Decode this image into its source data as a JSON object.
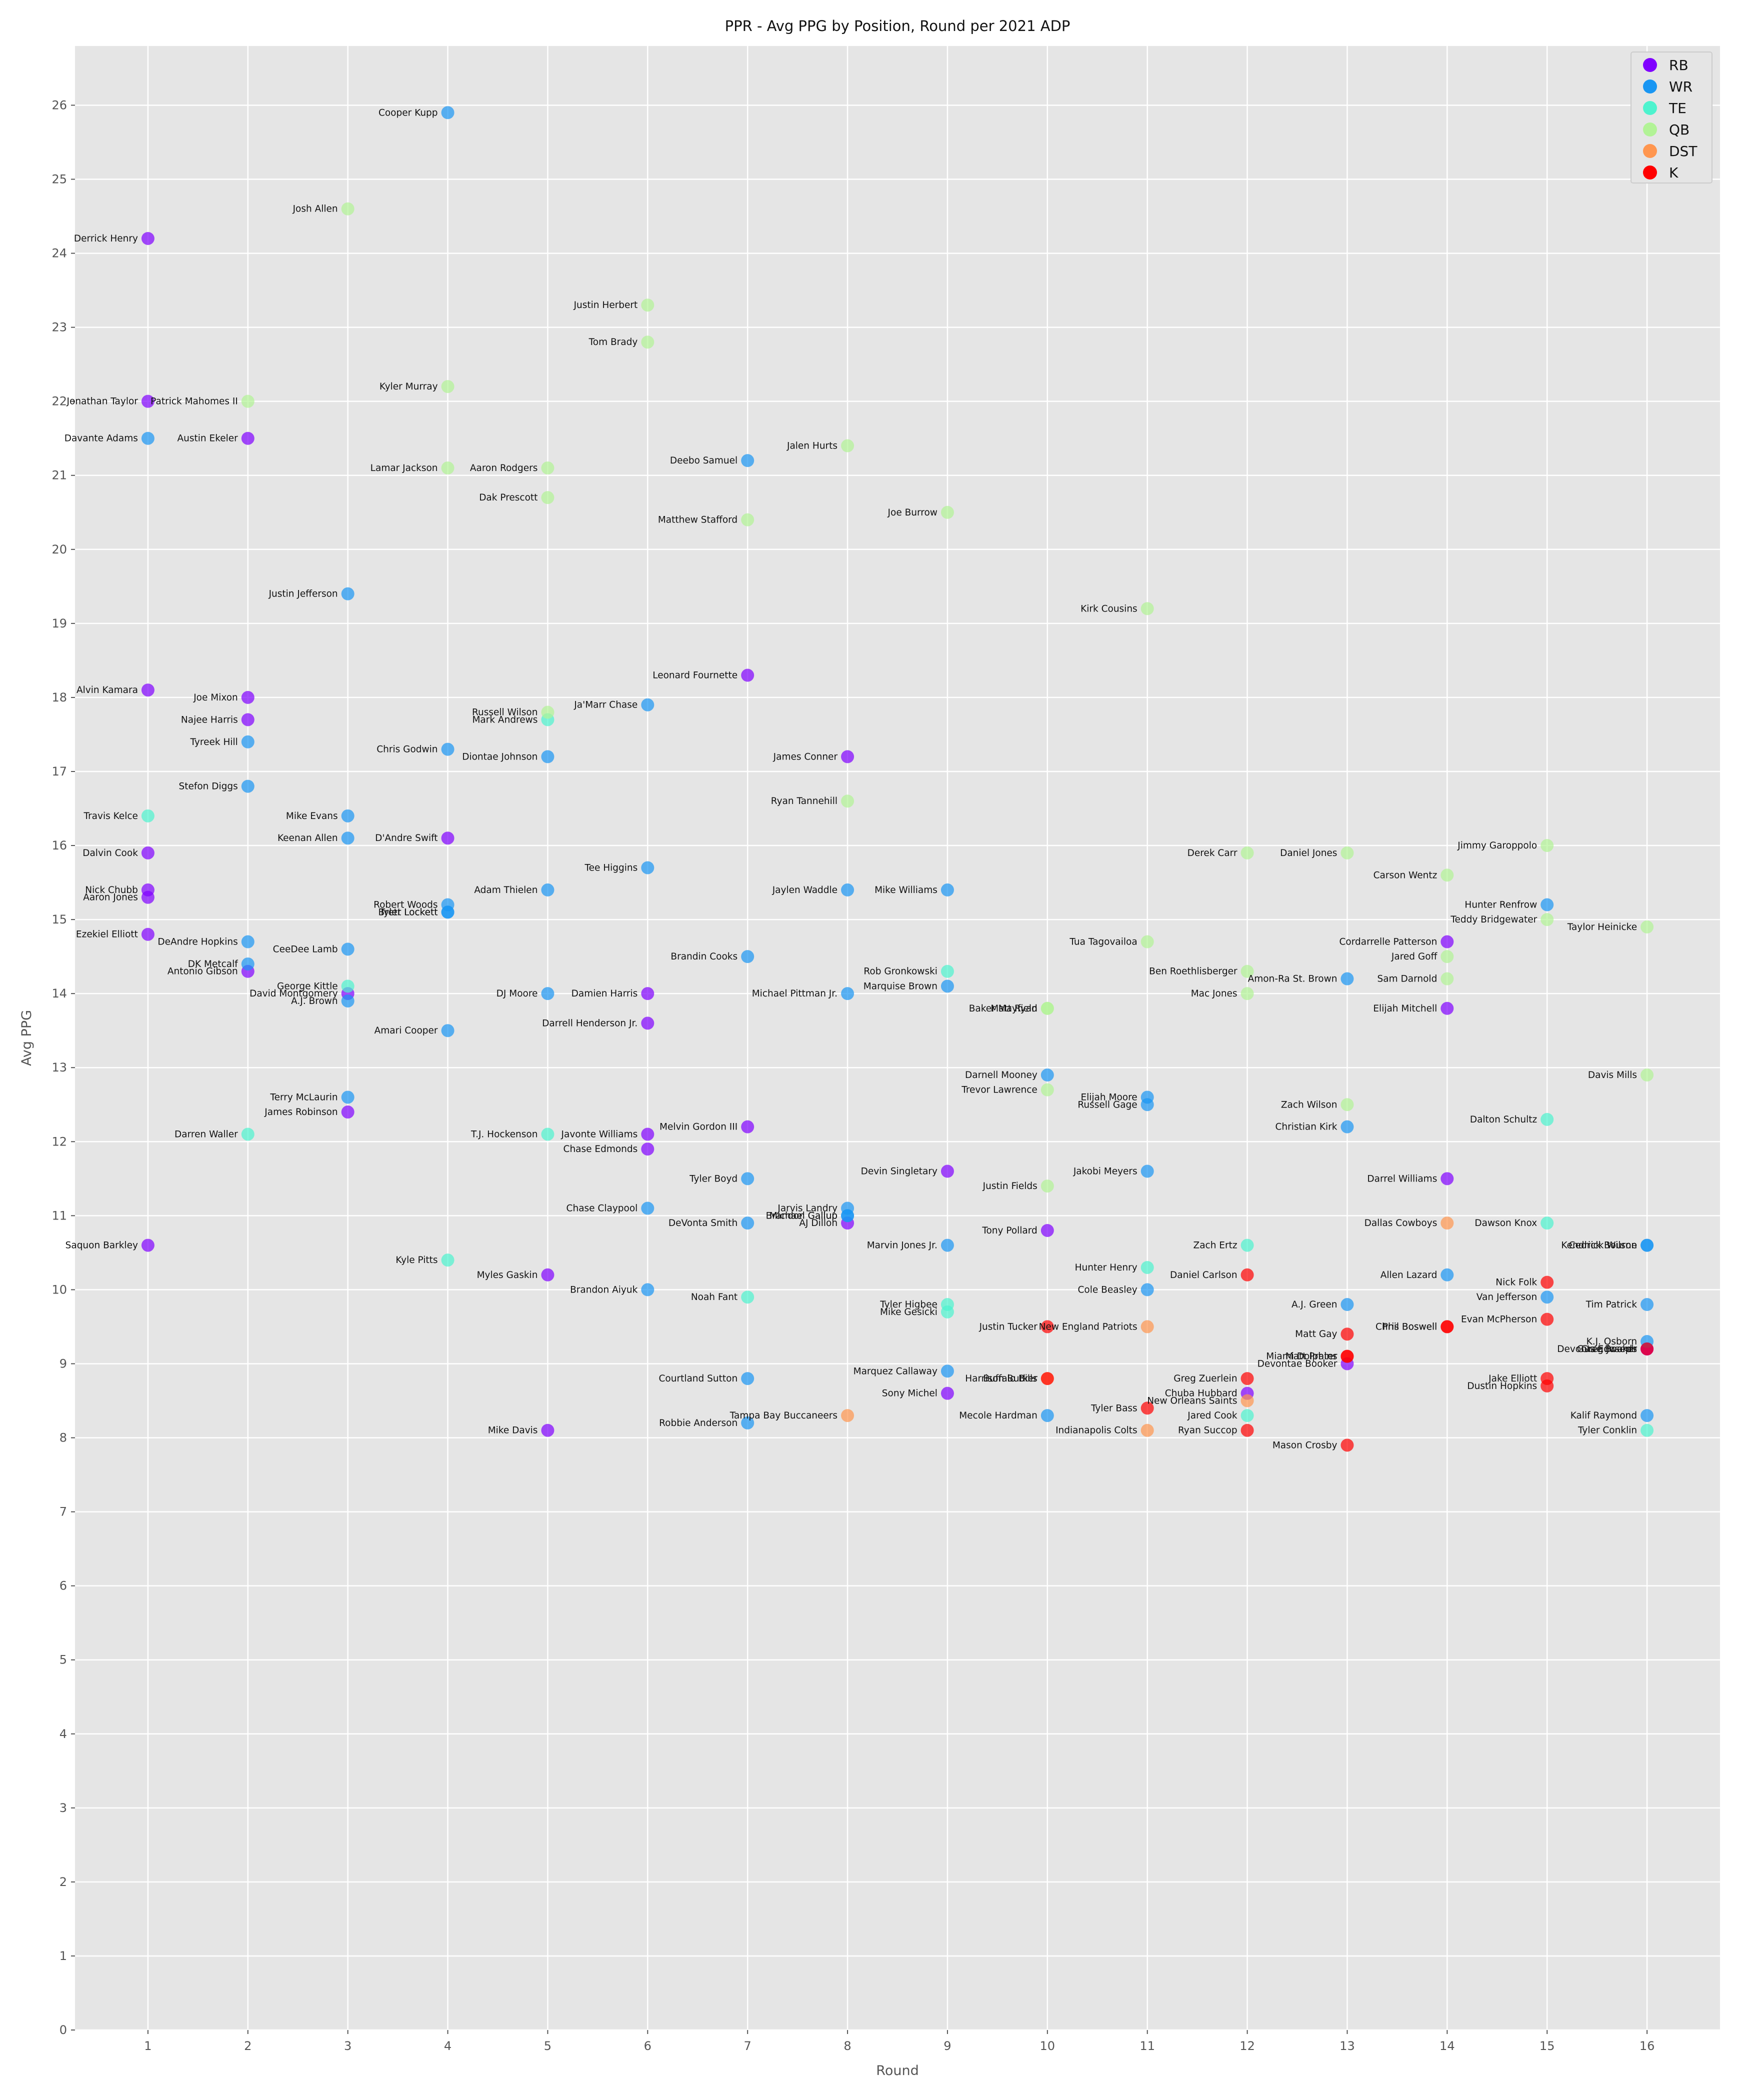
{
  "chart_data": {
    "type": "scatter",
    "title": "PPR - Avg PPG by Position, Round per 2021 ADP",
    "xlabel": "Round",
    "ylabel": "Avg PPG",
    "xlim": [
      0.27,
      16.73
    ],
    "ylim": [
      0,
      26.8
    ],
    "x_ticks": [
      1,
      2,
      3,
      4,
      5,
      6,
      7,
      8,
      9,
      10,
      11,
      12,
      13,
      14,
      15,
      16
    ],
    "y_ticks": [
      0,
      1,
      2,
      3,
      4,
      5,
      6,
      7,
      8,
      9,
      10,
      11,
      12,
      13,
      14,
      15,
      16,
      17,
      18,
      19,
      20,
      21,
      22,
      23,
      24,
      25,
      26
    ],
    "grid": true,
    "legend_position": "top-right",
    "background": "#e5e5e5",
    "series": [
      {
        "name": "RB",
        "color": "#8000ff",
        "points": [
          {
            "x": 1,
            "y": 24.2,
            "label": "Derrick Henry"
          },
          {
            "x": 1,
            "y": 22.0,
            "label": "Jonathan Taylor"
          },
          {
            "x": 2,
            "y": 21.5,
            "label": "Austin Ekeler"
          },
          {
            "x": 1,
            "y": 18.1,
            "label": "Alvin Kamara"
          },
          {
            "x": 2,
            "y": 18.0,
            "label": "Joe Mixon"
          },
          {
            "x": 2,
            "y": 17.7,
            "label": "Najee Harris"
          },
          {
            "x": 1,
            "y": 15.9,
            "label": "Dalvin Cook"
          },
          {
            "x": 1,
            "y": 15.4,
            "label": "Nick Chubb"
          },
          {
            "x": 1,
            "y": 15.3,
            "label": "Aaron Jones"
          },
          {
            "x": 1,
            "y": 14.8,
            "label": "Ezekiel Elliott"
          },
          {
            "x": 2,
            "y": 14.3,
            "label": "Antonio Gibson"
          },
          {
            "x": 3,
            "y": 14.0,
            "label": "David Montgomery"
          },
          {
            "x": 3,
            "y": 12.4,
            "label": "James Robinson"
          },
          {
            "x": 1,
            "y": 10.6,
            "label": "Saquon Barkley"
          },
          {
            "x": 4,
            "y": 16.1,
            "label": "D'Andre Swift"
          },
          {
            "x": 5,
            "y": 10.2,
            "label": "Myles Gaskin"
          },
          {
            "x": 5,
            "y": 8.1,
            "label": "Mike Davis"
          },
          {
            "x": 6,
            "y": 14.0,
            "label": "Damien Harris"
          },
          {
            "x": 6,
            "y": 13.6,
            "label": "Darrell Henderson Jr."
          },
          {
            "x": 6,
            "y": 12.1,
            "label": "Javonte Williams"
          },
          {
            "x": 6,
            "y": 11.9,
            "label": "Chase Edmonds"
          },
          {
            "x": 7,
            "y": 18.3,
            "label": "Leonard Fournette"
          },
          {
            "x": 7,
            "y": 12.2,
            "label": "Melvin Gordon III"
          },
          {
            "x": 8,
            "y": 17.2,
            "label": "James Conner"
          },
          {
            "x": 8,
            "y": 10.9,
            "label": "AJ Dillon"
          },
          {
            "x": 9,
            "y": 11.6,
            "label": "Devin Singletary"
          },
          {
            "x": 9,
            "y": 8.6,
            "label": "Sony Michel"
          },
          {
            "x": 10,
            "y": 10.8,
            "label": "Tony Pollard"
          },
          {
            "x": 12,
            "y": 8.6,
            "label": "Chuba Hubbard"
          },
          {
            "x": 13,
            "y": 9.0,
            "label": "Devontae Booker"
          },
          {
            "x": 14,
            "y": 14.7,
            "label": "Cordarrelle Patterson"
          },
          {
            "x": 14,
            "y": 13.8,
            "label": "Elijah Mitchell"
          },
          {
            "x": 14,
            "y": 11.5,
            "label": "Darrel Williams"
          },
          {
            "x": 16,
            "y": 9.2,
            "label": "Devontae Booker"
          },
          {
            "x": 16,
            "y": 9.2,
            "label": "Gus Edwards"
          }
        ]
      },
      {
        "name": "WR",
        "color": "#1996f3",
        "points": [
          {
            "x": 4,
            "y": 25.9,
            "label": "Cooper Kupp"
          },
          {
            "x": 1,
            "y": 21.5,
            "label": "Davante Adams"
          },
          {
            "x": 7,
            "y": 21.2,
            "label": "Deebo Samuel"
          },
          {
            "x": 3,
            "y": 19.4,
            "label": "Justin Jefferson"
          },
          {
            "x": 6,
            "y": 17.9,
            "label": "Ja'Marr Chase"
          },
          {
            "x": 2,
            "y": 17.4,
            "label": "Tyreek Hill"
          },
          {
            "x": 4,
            "y": 17.3,
            "label": "Chris Godwin"
          },
          {
            "x": 5,
            "y": 17.2,
            "label": "Diontae Johnson"
          },
          {
            "x": 2,
            "y": 16.8,
            "label": "Stefon Diggs"
          },
          {
            "x": 3,
            "y": 16.4,
            "label": "Mike Evans"
          },
          {
            "x": 3,
            "y": 16.1,
            "label": "Keenan Allen"
          },
          {
            "x": 6,
            "y": 15.7,
            "label": "Tee Higgins"
          },
          {
            "x": 5,
            "y": 15.4,
            "label": "Adam Thielen"
          },
          {
            "x": 8,
            "y": 15.4,
            "label": "Jaylen Waddle"
          },
          {
            "x": 9,
            "y": 15.4,
            "label": "Mike Williams"
          },
          {
            "x": 4,
            "y": 15.2,
            "label": "Robert Woods"
          },
          {
            "x": 4,
            "y": 15.1,
            "label": "Tyler Lockett"
          },
          {
            "x": 4,
            "y": 15.1,
            "label": "Brett Lockett"
          },
          {
            "x": 2,
            "y": 14.7,
            "label": "DeAndre Hopkins"
          },
          {
            "x": 3,
            "y": 14.6,
            "label": "CeeDee Lamb"
          },
          {
            "x": 7,
            "y": 14.5,
            "label": "Brandin Cooks"
          },
          {
            "x": 2,
            "y": 14.4,
            "label": "DK Metcalf"
          },
          {
            "x": 9,
            "y": 14.1,
            "label": "Marquise Brown"
          },
          {
            "x": 5,
            "y": 14.0,
            "label": "DJ Moore"
          },
          {
            "x": 8,
            "y": 14.0,
            "label": "Michael Pittman Jr."
          },
          {
            "x": 3,
            "y": 13.9,
            "label": "A.J. Brown"
          },
          {
            "x": 4,
            "y": 13.5,
            "label": "Amari Cooper"
          },
          {
            "x": 10,
            "y": 12.9,
            "label": "Darnell Mooney"
          },
          {
            "x": 3,
            "y": 12.6,
            "label": "Terry McLaurin"
          },
          {
            "x": 11,
            "y": 12.6,
            "label": "Elijah Moore"
          },
          {
            "x": 11,
            "y": 12.5,
            "label": "Russell Gage"
          },
          {
            "x": 13,
            "y": 12.2,
            "label": "Christian Kirk"
          },
          {
            "x": 7,
            "y": 11.5,
            "label": "Tyler Boyd"
          },
          {
            "x": 11,
            "y": 11.6,
            "label": "Jakobi Meyers"
          },
          {
            "x": 6,
            "y": 11.1,
            "label": "Chase Claypool"
          },
          {
            "x": 8,
            "y": 11.1,
            "label": "Jarvis Landry"
          },
          {
            "x": 8,
            "y": 11.0,
            "label": "Michael Gallup"
          },
          {
            "x": 8,
            "y": 11.0,
            "label": "Brandon Gallup"
          },
          {
            "x": 7,
            "y": 10.9,
            "label": "DeVonta Smith"
          },
          {
            "x": 9,
            "y": 10.6,
            "label": "Marvin Jones Jr."
          },
          {
            "x": 6,
            "y": 10.0,
            "label": "Brandon Aiyuk"
          },
          {
            "x": 11,
            "y": 10.0,
            "label": "Cole Beasley"
          },
          {
            "x": 14,
            "y": 10.2,
            "label": "Allen Lazard"
          },
          {
            "x": 13,
            "y": 9.8,
            "label": "A.J. Green"
          },
          {
            "x": 15,
            "y": 15.2,
            "label": "Hunter Renfrow"
          },
          {
            "x": 13,
            "y": 14.2,
            "label": "Amon-Ra St. Brown"
          },
          {
            "x": 15,
            "y": 9.9,
            "label": "Van Jefferson"
          },
          {
            "x": 16,
            "y": 9.8,
            "label": "Tim Patrick"
          },
          {
            "x": 16,
            "y": 9.3,
            "label": "K.J. Osborn"
          },
          {
            "x": 16,
            "y": 10.6,
            "label": "Kendrick Bourne"
          },
          {
            "x": 16,
            "y": 10.6,
            "label": "Cedrick Wilson"
          },
          {
            "x": 9,
            "y": 8.9,
            "label": "Marquez Callaway"
          },
          {
            "x": 7,
            "y": 8.8,
            "label": "Courtland Sutton"
          },
          {
            "x": 7,
            "y": 8.2,
            "label": "Robbie Anderson"
          },
          {
            "x": 10,
            "y": 8.3,
            "label": "Mecole Hardman"
          },
          {
            "x": 16,
            "y": 8.3,
            "label": "Kalif Raymond"
          }
        ]
      },
      {
        "name": "TE",
        "color": "#4df3ce",
        "points": [
          {
            "x": 1,
            "y": 16.4,
            "label": "Travis Kelce"
          },
          {
            "x": 5,
            "y": 17.7,
            "label": "Mark Andrews"
          },
          {
            "x": 3,
            "y": 14.1,
            "label": "George Kittle"
          },
          {
            "x": 2,
            "y": 12.1,
            "label": "Darren Waller"
          },
          {
            "x": 5,
            "y": 12.1,
            "label": "T.J. Hockenson"
          },
          {
            "x": 4,
            "y": 10.4,
            "label": "Kyle Pitts"
          },
          {
            "x": 7,
            "y": 9.9,
            "label": "Noah Fant"
          },
          {
            "x": 9,
            "y": 14.3,
            "label": "Rob Gronkowski"
          },
          {
            "x": 9,
            "y": 9.8,
            "label": "Tyler Higbee"
          },
          {
            "x": 9,
            "y": 9.7,
            "label": "Mike Gesicki"
          },
          {
            "x": 11,
            "y": 10.3,
            "label": "Hunter Henry"
          },
          {
            "x": 12,
            "y": 10.6,
            "label": "Zach Ertz"
          },
          {
            "x": 12,
            "y": 8.3,
            "label": "Jared Cook"
          },
          {
            "x": 15,
            "y": 12.3,
            "label": "Dalton Schultz"
          },
          {
            "x": 15,
            "y": 10.9,
            "label": "Dawson Knox"
          },
          {
            "x": 16,
            "y": 8.1,
            "label": "Tyler Conklin"
          }
        ]
      },
      {
        "name": "QB",
        "color": "#b2f396",
        "points": [
          {
            "x": 3,
            "y": 24.6,
            "label": "Josh Allen"
          },
          {
            "x": 6,
            "y": 23.3,
            "label": "Justin Herbert"
          },
          {
            "x": 6,
            "y": 22.8,
            "label": "Tom Brady"
          },
          {
            "x": 4,
            "y": 22.2,
            "label": "Kyler Murray"
          },
          {
            "x": 2,
            "y": 22.0,
            "label": "Patrick Mahomes II"
          },
          {
            "x": 8,
            "y": 21.4,
            "label": "Jalen Hurts"
          },
          {
            "x": 4,
            "y": 21.1,
            "label": "Lamar Jackson"
          },
          {
            "x": 5,
            "y": 21.1,
            "label": "Aaron Rodgers"
          },
          {
            "x": 5,
            "y": 20.7,
            "label": "Dak Prescott"
          },
          {
            "x": 9,
            "y": 20.5,
            "label": "Joe Burrow"
          },
          {
            "x": 7,
            "y": 20.4,
            "label": "Matthew Stafford"
          },
          {
            "x": 11,
            "y": 19.2,
            "label": "Kirk Cousins"
          },
          {
            "x": 5,
            "y": 17.8,
            "label": "Russell Wilson"
          },
          {
            "x": 8,
            "y": 16.6,
            "label": "Ryan Tannehill"
          },
          {
            "x": 15,
            "y": 16.0,
            "label": "Jimmy Garoppolo"
          },
          {
            "x": 12,
            "y": 15.9,
            "label": "Derek Carr"
          },
          {
            "x": 13,
            "y": 15.9,
            "label": "Daniel Jones"
          },
          {
            "x": 14,
            "y": 15.6,
            "label": "Carson Wentz"
          },
          {
            "x": 15,
            "y": 15.0,
            "label": "Teddy Bridgewater"
          },
          {
            "x": 16,
            "y": 14.9,
            "label": "Taylor Heinicke"
          },
          {
            "x": 11,
            "y": 14.7,
            "label": "Tua Tagovailoa"
          },
          {
            "x": 14,
            "y": 14.5,
            "label": "Jared Goff"
          },
          {
            "x": 12,
            "y": 14.3,
            "label": "Ben Roethlisberger"
          },
          {
            "x": 14,
            "y": 14.2,
            "label": "Sam Darnold"
          },
          {
            "x": 12,
            "y": 14.0,
            "label": "Mac Jones"
          },
          {
            "x": 10,
            "y": 13.8,
            "label": "Baker Mayfield"
          },
          {
            "x": 10,
            "y": 13.8,
            "label": "Matt Ryan"
          },
          {
            "x": 16,
            "y": 12.9,
            "label": "Davis Mills"
          },
          {
            "x": 10,
            "y": 12.7,
            "label": "Trevor Lawrence"
          },
          {
            "x": 13,
            "y": 12.5,
            "label": "Zach Wilson"
          },
          {
            "x": 10,
            "y": 11.4,
            "label": "Justin Fields"
          }
        ]
      },
      {
        "name": "DST",
        "color": "#ff964f",
        "points": [
          {
            "x": 14,
            "y": 10.9,
            "label": "Dallas Cowboys"
          },
          {
            "x": 11,
            "y": 9.5,
            "label": "New England Patriots"
          },
          {
            "x": 10,
            "y": 8.8,
            "label": "Buffalo Bills"
          },
          {
            "x": 12,
            "y": 8.5,
            "label": "New Orleans Saints"
          },
          {
            "x": 8,
            "y": 8.3,
            "label": "Tampa Bay Buccaneers"
          },
          {
            "x": 11,
            "y": 8.1,
            "label": "Indianapolis Colts"
          }
        ]
      },
      {
        "name": "K",
        "color": "#ff0000",
        "points": [
          {
            "x": 12,
            "y": 10.2,
            "label": "Daniel Carlson"
          },
          {
            "x": 15,
            "y": 10.1,
            "label": "Nick Folk"
          },
          {
            "x": 15,
            "y": 9.6,
            "label": "Evan McPherson"
          },
          {
            "x": 10,
            "y": 9.5,
            "label": "Justin Tucker"
          },
          {
            "x": 14,
            "y": 9.5,
            "label": "Chris Boswell"
          },
          {
            "x": 14,
            "y": 9.5,
            "label": "Phil Boswell"
          },
          {
            "x": 13,
            "y": 9.4,
            "label": "Matt Gay"
          },
          {
            "x": 13,
            "y": 9.1,
            "label": "Matt Prater"
          },
          {
            "x": 13,
            "y": 9.1,
            "label": "Miami Dolphins"
          },
          {
            "x": 12,
            "y": 8.8,
            "label": "Greg Zuerlein"
          },
          {
            "x": 10,
            "y": 8.8,
            "label": "Harrison Butker"
          },
          {
            "x": 15,
            "y": 8.8,
            "label": "Jake Elliott"
          },
          {
            "x": 15,
            "y": 8.7,
            "label": "Dustin Hopkins"
          },
          {
            "x": 11,
            "y": 8.4,
            "label": "Tyler Bass"
          },
          {
            "x": 12,
            "y": 8.1,
            "label": "Ryan Succop"
          },
          {
            "x": 13,
            "y": 7.9,
            "label": "Mason Crosby"
          },
          {
            "x": 16,
            "y": 9.2,
            "label": "Greg Joseph"
          }
        ]
      }
    ]
  }
}
